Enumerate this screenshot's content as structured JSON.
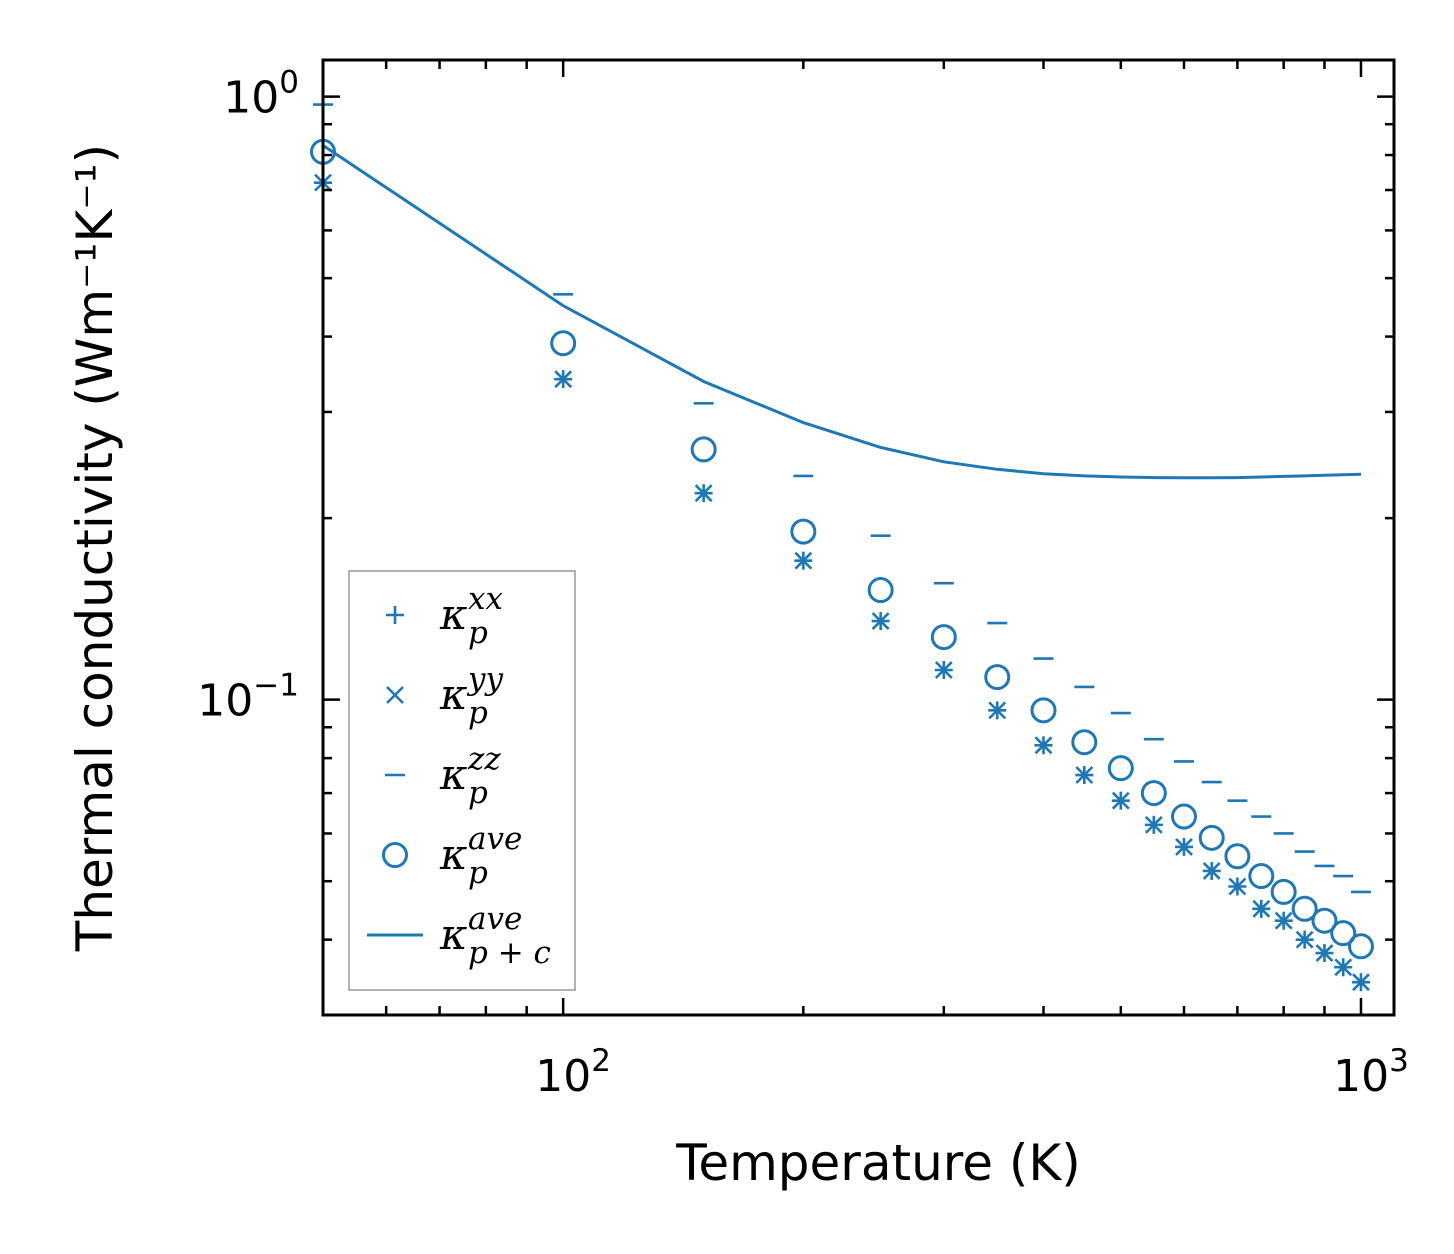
{
  "chart_data": {
    "type": "scatter",
    "xscale": "log",
    "yscale": "log",
    "xlim": [
      50,
      1100
    ],
    "ylim": [
      0.03,
      1.15
    ],
    "xlabel": "Temperature (K)",
    "ylabel": "Thermal conductivity (Wm⁻¹K⁻¹)",
    "xticks": [
      {
        "value": 100,
        "base": "10",
        "exp": "2"
      },
      {
        "value": 1000,
        "base": "10",
        "exp": "3"
      }
    ],
    "yticks": [
      {
        "value": 0.1,
        "base": "10",
        "exp": "−1"
      },
      {
        "value": 1,
        "base": "10",
        "exp": "0"
      }
    ],
    "legend_position": "lower-left",
    "color": "#1f77b4",
    "x": [
      50,
      100,
      150,
      200,
      250,
      300,
      350,
      400,
      450,
      500,
      550,
      600,
      650,
      700,
      750,
      800,
      850,
      900,
      950,
      1000
    ],
    "series": [
      {
        "name": "κ_p^xx",
        "sym": "κ",
        "sub": "p",
        "sup": "xx",
        "marker": "plus",
        "values": [
          0.72,
          0.34,
          0.22,
          0.17,
          0.135,
          0.112,
          0.096,
          0.084,
          0.075,
          0.068,
          0.062,
          0.057,
          0.052,
          0.049,
          0.045,
          0.043,
          0.04,
          0.038,
          0.036,
          0.034
        ]
      },
      {
        "name": "κ_p^yy",
        "sym": "κ",
        "sub": "p",
        "sup": "yy",
        "marker": "x",
        "values": [
          0.72,
          0.34,
          0.22,
          0.17,
          0.135,
          0.112,
          0.096,
          0.084,
          0.075,
          0.068,
          0.062,
          0.057,
          0.052,
          0.049,
          0.045,
          0.043,
          0.04,
          0.038,
          0.036,
          0.034
        ]
      },
      {
        "name": "κ_p^zz",
        "sym": "κ",
        "sub": "p",
        "sup": "zz",
        "marker": "hline",
        "values": [
          0.97,
          0.47,
          0.31,
          0.235,
          0.187,
          0.156,
          0.134,
          0.117,
          0.105,
          0.095,
          0.086,
          0.079,
          0.073,
          0.068,
          0.064,
          0.06,
          0.056,
          0.053,
          0.051,
          0.048
        ]
      },
      {
        "name": "κ_p^ave",
        "sym": "κ",
        "sub": "p",
        "sup": "ave",
        "marker": "circle",
        "values": [
          0.81,
          0.39,
          0.26,
          0.19,
          0.152,
          0.127,
          0.109,
          0.096,
          0.085,
          0.077,
          0.07,
          0.064,
          0.059,
          0.055,
          0.051,
          0.048,
          0.045,
          0.043,
          0.041,
          0.039
        ]
      },
      {
        "name": "κ_p+c^ave",
        "sym": "κ",
        "sub": "p + c",
        "sup": "ave",
        "marker": "line",
        "values": [
          0.83,
          0.45,
          0.337,
          0.288,
          0.262,
          0.248,
          0.241,
          0.237,
          0.235,
          0.234,
          0.2335,
          0.2333,
          0.2333,
          0.2335,
          0.234,
          0.2345,
          0.235,
          0.2355,
          0.236,
          0.2365
        ]
      }
    ]
  }
}
